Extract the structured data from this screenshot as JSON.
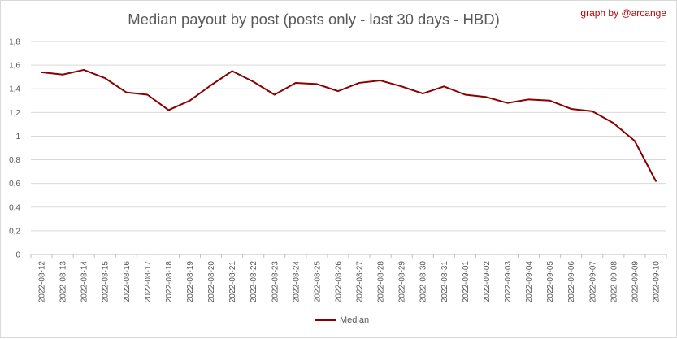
{
  "chart_data": {
    "type": "line",
    "title": "Median payout by post (posts only - last 30 days - HBD)",
    "credit": "graph by @arcange",
    "xlabel": "",
    "ylabel": "",
    "ylim": [
      0,
      1.8
    ],
    "yticks": [
      "0",
      "0,2",
      "0,4",
      "0,6",
      "0,8",
      "1",
      "1,2",
      "1,4",
      "1,6",
      "1,8"
    ],
    "grid": true,
    "legend_position": "bottom",
    "colors": {
      "series": "#8b0000",
      "grid": "#d9d9d9",
      "text": "#595959"
    },
    "categories": [
      "2022-08-12",
      "2022-08-13",
      "2022-08-14",
      "2022-08-15",
      "2022-08-16",
      "2022-08-17",
      "2022-08-18",
      "2022-08-19",
      "2022-08-20",
      "2022-08-21",
      "2022-08-22",
      "2022-08-23",
      "2022-08-24",
      "2022-08-25",
      "2022-08-26",
      "2022-08-27",
      "2022-08-28",
      "2022-08-29",
      "2022-08-30",
      "2022-08-31",
      "2022-09-01",
      "2022-09-02",
      "2022-09-03",
      "2022-09-04",
      "2022-09-05",
      "2022-09-06",
      "2022-09-07",
      "2022-09-08",
      "2022-09-09",
      "2022-09-10"
    ],
    "series": [
      {
        "name": "Median",
        "values": [
          1.54,
          1.52,
          1.56,
          1.49,
          1.37,
          1.35,
          1.22,
          1.3,
          1.43,
          1.55,
          1.46,
          1.35,
          1.45,
          1.44,
          1.38,
          1.45,
          1.47,
          1.42,
          1.36,
          1.42,
          1.35,
          1.33,
          1.28,
          1.31,
          1.3,
          1.23,
          1.21,
          1.11,
          0.96,
          0.62
        ]
      }
    ]
  }
}
